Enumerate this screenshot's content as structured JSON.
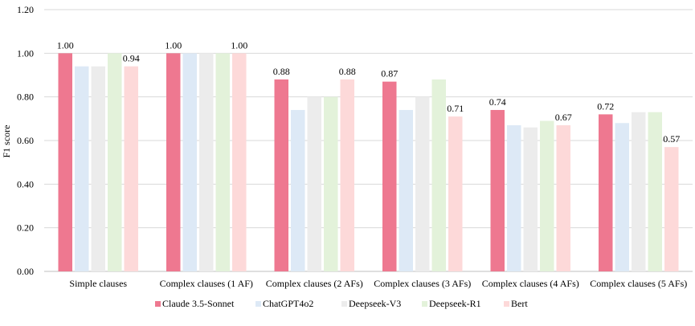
{
  "chart_data": {
    "type": "bar",
    "title": "",
    "xlabel": "",
    "ylabel": "F1 score",
    "ylim": [
      0,
      1.2
    ],
    "yticks": [
      "0.00",
      "0.20",
      "0.40",
      "0.60",
      "0.80",
      "1.00",
      "1.20"
    ],
    "grid": true,
    "legend_position": "bottom",
    "categories": [
      "Simple clauses",
      "Complex clauses (1 AF)",
      "Complex clauses (2 AFs)",
      "Complex clauses (3 AFs)",
      "Complex clauses (4 AFs)",
      "Complex clauses (5 AFs)"
    ],
    "series": [
      {
        "name": "Claude 3.5-Sonnet",
        "color": "#ee7890",
        "values": [
          1.0,
          1.0,
          0.88,
          0.87,
          0.74,
          0.72
        ]
      },
      {
        "name": "ChatGPT4o2",
        "color": "#dde9f6",
        "values": [
          0.94,
          1.0,
          0.74,
          0.74,
          0.67,
          0.68
        ]
      },
      {
        "name": "Deepseek-V3",
        "color": "#ececec",
        "values": [
          0.94,
          1.0,
          0.8,
          0.8,
          0.66,
          0.73
        ]
      },
      {
        "name": "Deepseek-R1",
        "color": "#e3f2da",
        "values": [
          1.0,
          1.0,
          0.8,
          0.88,
          0.69,
          0.73
        ]
      },
      {
        "name": "Bert",
        "color": "#fdd9d9",
        "values": [
          0.94,
          1.0,
          0.88,
          0.71,
          0.67,
          0.57
        ]
      }
    ],
    "data_labels": [
      {
        "series": 0,
        "category": 0,
        "text": "1.00"
      },
      {
        "series": 4,
        "category": 0,
        "text": "0.94"
      },
      {
        "series": 0,
        "category": 1,
        "text": "1.00"
      },
      {
        "series": 4,
        "category": 1,
        "text": "1.00"
      },
      {
        "series": 0,
        "category": 2,
        "text": "0.88"
      },
      {
        "series": 4,
        "category": 2,
        "text": "0.88"
      },
      {
        "series": 0,
        "category": 3,
        "text": "0.87"
      },
      {
        "series": 4,
        "category": 3,
        "text": "0.71"
      },
      {
        "series": 0,
        "category": 4,
        "text": "0.74"
      },
      {
        "series": 4,
        "category": 4,
        "text": "0.67"
      },
      {
        "series": 0,
        "category": 5,
        "text": "0.72"
      },
      {
        "series": 4,
        "category": 5,
        "text": "0.57"
      }
    ]
  }
}
